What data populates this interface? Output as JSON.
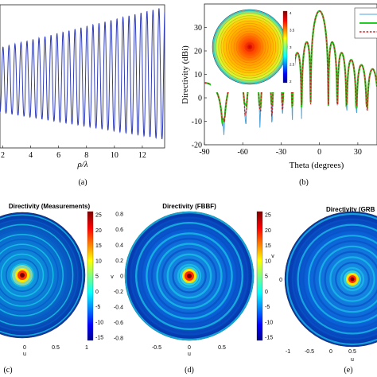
{
  "panels": {
    "a": {
      "tag": "(a)"
    },
    "b": {
      "tag": "(b)"
    },
    "c": {
      "tag": "(c)"
    },
    "d": {
      "tag": "(d)"
    },
    "e": {
      "tag": "(e)"
    }
  },
  "colors": {
    "line_a": "#2e3bb8",
    "measured": "#4aa3d8",
    "fbbf": "#22cc22",
    "grbf": "#cc2222"
  },
  "chart_data": [
    {
      "id": "a",
      "type": "line",
      "xlabel": "ρ/λ",
      "xticks": [
        2,
        4,
        6,
        8,
        10,
        12
      ],
      "xlim": [
        1.8,
        13.6
      ],
      "series": [
        {
          "x_start": 1.8,
          "x_end": 13.6,
          "period": 0.43,
          "low_start": 0.25,
          "low_end": 0.06,
          "high_start": 0.7,
          "high_end": 0.985
        }
      ]
    },
    {
      "id": "b",
      "type": "line",
      "xlabel": "Theta (degrees)",
      "ylabel": "Directivity (dBi)",
      "xticks": [
        -90,
        -60,
        -30,
        0,
        30
      ],
      "yticks": [
        -20,
        -10,
        0,
        10,
        20,
        30
      ],
      "xlim": [
        -90,
        45
      ],
      "ylim": [
        -20,
        40
      ],
      "peak": 37,
      "inset_colorbar_ticks": [
        "4",
        "3.5",
        "3",
        "2.5",
        "2"
      ]
    },
    {
      "id": "c",
      "type": "heatmap",
      "title": "Directivity (Measurements)",
      "xlabel": "u",
      "xticks": [
        "0",
        "0.5",
        "1"
      ],
      "colorbar_ticks": [
        "25",
        "20",
        "15",
        "10",
        "5",
        "0",
        "-5",
        "-10",
        "-15"
      ]
    },
    {
      "id": "d",
      "type": "heatmap",
      "title": "Directivity (FBBF)",
      "xlabel": "u",
      "ylabel": "v",
      "xticks": [
        "-0.5",
        "0",
        "0.5"
      ],
      "yticks": [
        "0.8",
        "0.6",
        "0.4",
        "0.2",
        "0",
        "-0.2",
        "-0.4",
        "-0.6",
        "-0.8"
      ],
      "colorbar_ticks": [
        "25",
        "20",
        "15",
        "10",
        "5",
        "0",
        "-5",
        "-10",
        "-15"
      ]
    },
    {
      "id": "e",
      "type": "heatmap",
      "title": "Directivity (GRB",
      "xlabel": "u",
      "ylabel": "v",
      "xticks": [
        "-1",
        "-0.5",
        "0",
        "0.5"
      ],
      "yticks": [
        "0"
      ]
    }
  ]
}
